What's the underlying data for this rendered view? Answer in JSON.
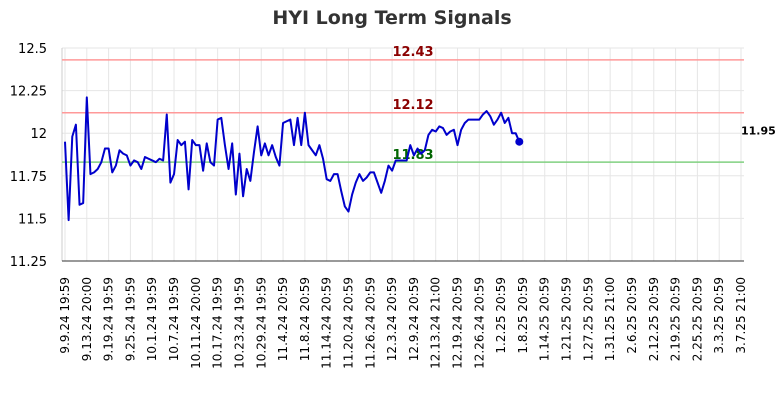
{
  "chart_data": {
    "type": "line",
    "title": "HYI Long Term Signals",
    "ylim": [
      11.25,
      12.5
    ],
    "yticks": [
      {
        "value": 11.25,
        "label": "11.25"
      },
      {
        "value": 11.5,
        "label": "11.5"
      },
      {
        "value": 11.75,
        "label": "11.75"
      },
      {
        "value": 12.0,
        "label": "12"
      },
      {
        "value": 12.25,
        "label": "12.25"
      },
      {
        "value": 12.5,
        "label": "12.5"
      }
    ],
    "xticks": [
      {
        "index": 0,
        "label": "9.9.24 19:59"
      },
      {
        "index": 6,
        "label": "9.13.24 20:00"
      },
      {
        "index": 12,
        "label": "9.19.24 19:59"
      },
      {
        "index": 18,
        "label": "9.25.24 19:59"
      },
      {
        "index": 24,
        "label": "10.1.24 19:59"
      },
      {
        "index": 30,
        "label": "10.7.24 19:59"
      },
      {
        "index": 36,
        "label": "10.11.24 20:00"
      },
      {
        "index": 42,
        "label": "10.17.24 19:59"
      },
      {
        "index": 48,
        "label": "10.23.24 19:59"
      },
      {
        "index": 54,
        "label": "10.29.24 19:59"
      },
      {
        "index": 60,
        "label": "11.4.24 20:59"
      },
      {
        "index": 66,
        "label": "11.8.24 20:59"
      },
      {
        "index": 72,
        "label": "11.14.24 20:59"
      },
      {
        "index": 78,
        "label": "11.20.24 20:59"
      },
      {
        "index": 84,
        "label": "11.26.24 20:59"
      },
      {
        "index": 90,
        "label": "12.3.24 20:59"
      },
      {
        "index": 96,
        "label": "12.9.24 20:59"
      },
      {
        "index": 102,
        "label": "12.13.24 21:00"
      },
      {
        "index": 108,
        "label": "12.19.24 20:59"
      },
      {
        "index": 114,
        "label": "12.26.24 20:59"
      },
      {
        "index": 120,
        "label": "1.2.25 20:59"
      },
      {
        "index": 126,
        "label": "1.8.25 20:59"
      },
      {
        "index": 132,
        "label": "1.14.25 20:59"
      },
      {
        "index": 138,
        "label": "1.21.25 20:59"
      },
      {
        "index": 144,
        "label": "1.27.25 20:59"
      },
      {
        "index": 150,
        "label": "1.31.25 21:00"
      },
      {
        "index": 156,
        "label": "2.6.25 20:59"
      },
      {
        "index": 162,
        "label": "2.12.25 20:59"
      },
      {
        "index": 168,
        "label": "2.19.25 20:59"
      },
      {
        "index": 174,
        "label": "2.25.25 20:59"
      },
      {
        "index": 180,
        "label": "3.3.25 20:59"
      },
      {
        "index": 186,
        "label": "3.7.25 21:00"
      }
    ],
    "series": [
      {
        "color": "#0000cc",
        "values": [
          11.95,
          11.49,
          11.98,
          12.05,
          11.58,
          11.59,
          12.21,
          11.76,
          11.77,
          11.79,
          11.83,
          11.91,
          11.91,
          11.77,
          11.81,
          11.9,
          11.88,
          11.87,
          11.81,
          11.84,
          11.83,
          11.79,
          11.86,
          11.85,
          11.84,
          11.83,
          11.85,
          11.84,
          12.11,
          11.71,
          11.76,
          11.96,
          11.93,
          11.95,
          11.67,
          11.96,
          11.93,
          11.93,
          11.78,
          11.94,
          11.83,
          11.81,
          12.08,
          12.09,
          11.93,
          11.79,
          11.94,
          11.64,
          11.88,
          11.63,
          11.79,
          11.72,
          11.89,
          12.04,
          11.87,
          11.94,
          11.87,
          11.93,
          11.86,
          11.81,
          12.06,
          12.07,
          12.08,
          11.93,
          12.09,
          11.93,
          12.12,
          11.93,
          11.9,
          11.87,
          11.93,
          11.85,
          11.73,
          11.72,
          11.76,
          11.76,
          11.66,
          11.57,
          11.54,
          11.64,
          11.71,
          11.76,
          11.72,
          11.74,
          11.77,
          11.77,
          11.71,
          11.65,
          11.72,
          11.81,
          11.78,
          11.84,
          11.84,
          11.84,
          11.84,
          11.93,
          11.87,
          11.91,
          11.88,
          11.9,
          11.99,
          12.02,
          12.01,
          12.04,
          12.03,
          11.99,
          12.01,
          12.02,
          11.93,
          12.02,
          12.06,
          12.08,
          12.08,
          12.08,
          12.08,
          12.11,
          12.13,
          12.1,
          12.05,
          12.08,
          12.12,
          12.06,
          12.09,
          12.0,
          12.0,
          11.95
        ]
      }
    ],
    "ref_lines": [
      {
        "value": 12.43,
        "label": "12.43",
        "color": "#ff9999",
        "label_color": "#8b0000"
      },
      {
        "value": 12.12,
        "label": "12.12",
        "color": "#ff9999",
        "label_color": "#8b0000"
      },
      {
        "value": 11.83,
        "label": "11.83",
        "color": "#80d080",
        "label_color": "#006400"
      }
    ],
    "last_point": {
      "value": 11.95,
      "label": "11.95"
    },
    "grid": true
  }
}
